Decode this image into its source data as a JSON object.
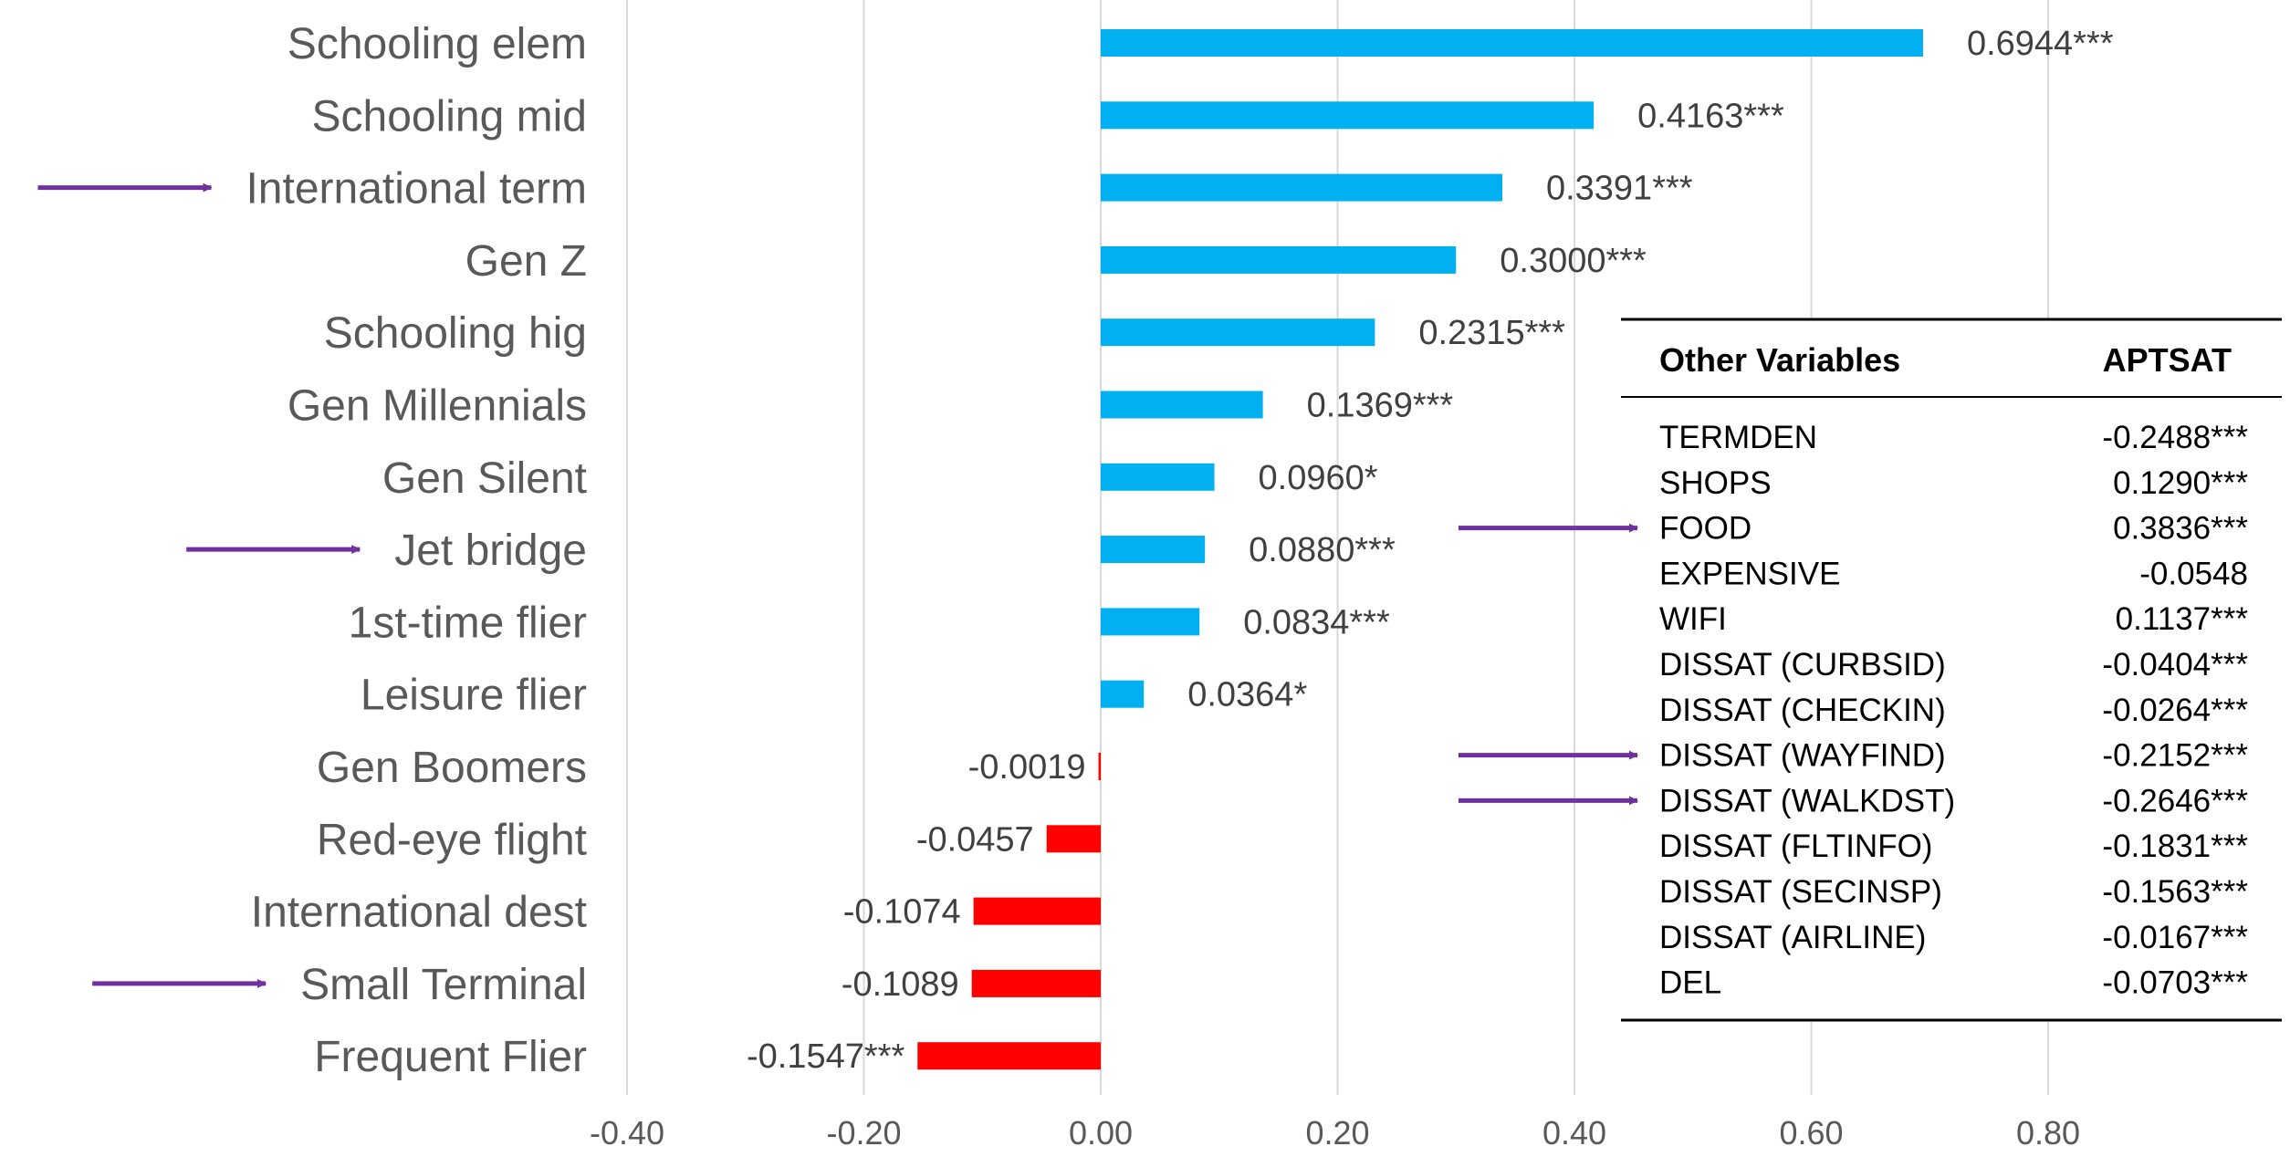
{
  "chart_data": {
    "type": "bar",
    "orientation": "horizontal",
    "title": "",
    "xlabel": "",
    "ylabel": "",
    "xlim": [
      -0.4,
      0.9
    ],
    "x_ticks": [
      "-0.40",
      "-0.20",
      "0.00",
      "0.20",
      "0.40",
      "0.60",
      "0.80"
    ],
    "x_tick_values": [
      -0.4,
      -0.2,
      0.0,
      0.2,
      0.4,
      0.6,
      0.8
    ],
    "grid": "vertical",
    "colors": {
      "positive": "#00B0F0",
      "negative": "#FF0000",
      "arrow": "#7030A0",
      "grid": "#D9D9D9"
    },
    "categories": [
      "Schooling elem",
      "Schooling mid",
      "International term",
      "Gen Z",
      "Schooling hig",
      "Gen Millennials",
      "Gen Silent",
      "Jet bridge",
      "1st-time flier",
      "Leisure flier",
      "Gen Boomers",
      "Red-eye flight",
      "International dest",
      "Small Terminal",
      "Frequent Flier"
    ],
    "values": [
      0.6944,
      0.4163,
      0.3391,
      0.3,
      0.2315,
      0.1369,
      0.096,
      0.088,
      0.0834,
      0.0364,
      -0.0019,
      -0.0457,
      -0.1074,
      -0.1089,
      -0.1547
    ],
    "labels": [
      "0.6944***",
      "0.4163***",
      "0.3391***",
      "0.3000***",
      "0.2315***",
      "0.1369***",
      "0.0960*",
      "0.0880***",
      "0.0834***",
      "0.0364*",
      "-0.0019",
      "-0.0457",
      "-0.1074",
      "-0.1089",
      "-0.1547***"
    ],
    "arrow_categories": [
      "International term",
      "Jet bridge",
      "Small Terminal"
    ],
    "table": {
      "headers": [
        "Other Variables",
        "APTSAT"
      ],
      "rows": [
        {
          "name": "TERMDEN",
          "value": "-0.2488***",
          "arrow": false
        },
        {
          "name": "SHOPS",
          "value": "0.1290***",
          "arrow": false
        },
        {
          "name": "FOOD",
          "value": "0.3836***",
          "arrow": true
        },
        {
          "name": "EXPENSIVE",
          "value": "-0.0548",
          "arrow": false
        },
        {
          "name": "WIFI",
          "value": "0.1137***",
          "arrow": false
        },
        {
          "name": "DISSAT (CURBSID)",
          "value": "-0.0404***",
          "arrow": false
        },
        {
          "name": "DISSAT (CHECKIN)",
          "value": "-0.0264***",
          "arrow": false
        },
        {
          "name": "DISSAT (WAYFIND)",
          "value": "-0.2152***",
          "arrow": true
        },
        {
          "name": "DISSAT (WALKDST)",
          "value": "-0.2646***",
          "arrow": true
        },
        {
          "name": "DISSAT (FLTINFO)",
          "value": "-0.1831***",
          "arrow": false
        },
        {
          "name": "DISSAT (SECINSP)",
          "value": "-0.1563***",
          "arrow": false
        },
        {
          "name": "DISSAT (AIRLINE)",
          "value": "-0.0167***",
          "arrow": false
        },
        {
          "name": "DEL",
          "value": "-0.0703***",
          "arrow": false
        }
      ]
    }
  }
}
